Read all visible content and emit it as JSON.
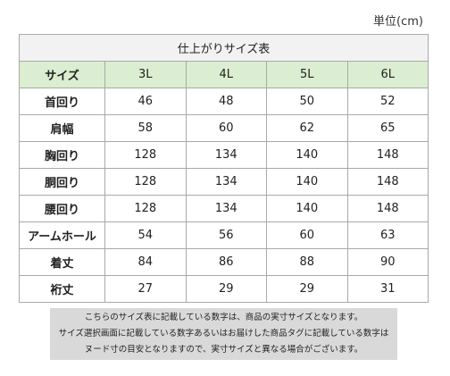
{
  "unit_label": "単位(cm)",
  "table": {
    "title": "仕上がりサイズ表",
    "corner_label": "サイズ",
    "sizes": [
      "3L",
      "4L",
      "5L",
      "6L"
    ],
    "rows": [
      {
        "label": "首回り",
        "values": [
          "46",
          "48",
          "50",
          "52"
        ]
      },
      {
        "label": "肩幅",
        "values": [
          "58",
          "60",
          "62",
          "65"
        ]
      },
      {
        "label": "胸回り",
        "values": [
          "128",
          "134",
          "140",
          "148"
        ]
      },
      {
        "label": "胴回り",
        "values": [
          "128",
          "134",
          "140",
          "148"
        ]
      },
      {
        "label": "腰回り",
        "values": [
          "128",
          "134",
          "140",
          "148"
        ]
      },
      {
        "label": "アームホール",
        "values": [
          "54",
          "56",
          "60",
          "63"
        ]
      },
      {
        "label": "着丈",
        "values": [
          "84",
          "86",
          "88",
          "90"
        ]
      },
      {
        "label": "裄丈",
        "values": [
          "27",
          "29",
          "29",
          "31"
        ]
      }
    ],
    "colors": {
      "title_bg": "#f2f2f2",
      "header_bg": "#dbeed1",
      "border": "#a9a9a9"
    }
  },
  "note": {
    "lines": [
      "こちらのサイズ表に記載している数字は、商品の実寸サイズとなります。",
      "サイズ選択画面に記載している数字あるいはお届けした商品タグに記載している数字は",
      "ヌード寸の目安となりますので、実寸サイズと異なる場合がございます。"
    ],
    "bg": "#d9d9d9"
  }
}
